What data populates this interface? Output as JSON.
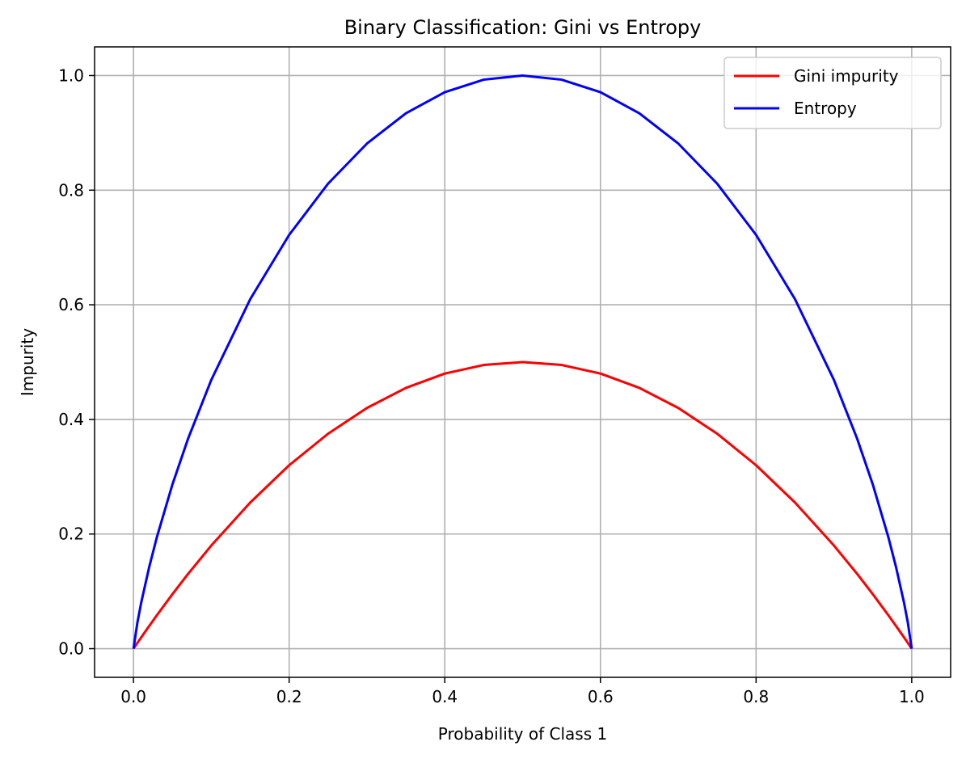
{
  "chart_data": {
    "type": "line",
    "title": "Binary Classification: Gini vs Entropy",
    "xlabel": "Probability of Class 1",
    "ylabel": "Impurity",
    "xlim": [
      -0.05,
      1.05
    ],
    "ylim": [
      -0.05,
      1.05
    ],
    "x_ticks": [
      0.0,
      0.2,
      0.4,
      0.6,
      0.8,
      1.0
    ],
    "x_tick_labels": [
      "0.0",
      "0.2",
      "0.4",
      "0.6",
      "0.8",
      "1.0"
    ],
    "y_ticks": [
      0.0,
      0.2,
      0.4,
      0.6,
      0.8,
      1.0
    ],
    "y_tick_labels": [
      "0.0",
      "0.2",
      "0.4",
      "0.6",
      "0.8",
      "1.0"
    ],
    "grid": true,
    "legend_position": "upper right",
    "x": [
      0.0,
      0.005,
      0.01,
      0.02,
      0.03,
      0.05,
      0.07,
      0.1,
      0.15,
      0.2,
      0.25,
      0.3,
      0.35,
      0.4,
      0.45,
      0.5,
      0.55,
      0.6,
      0.65,
      0.7,
      0.75,
      0.8,
      0.85,
      0.9,
      0.93,
      0.95,
      0.97,
      0.98,
      0.99,
      0.995,
      1.0
    ],
    "series": [
      {
        "name": "Gini impurity",
        "color": "#ff0000",
        "values": [
          0.0,
          0.01,
          0.0198,
          0.0392,
          0.0582,
          0.095,
          0.1302,
          0.18,
          0.255,
          0.32,
          0.375,
          0.42,
          0.455,
          0.48,
          0.495,
          0.5,
          0.495,
          0.48,
          0.455,
          0.42,
          0.375,
          0.32,
          0.255,
          0.18,
          0.1302,
          0.095,
          0.0582,
          0.0392,
          0.0198,
          0.01,
          0.0
        ]
      },
      {
        "name": "Entropy",
        "color": "#0000ff",
        "values": [
          0.0,
          0.0454,
          0.0808,
          0.1414,
          0.1944,
          0.2864,
          0.3659,
          0.469,
          0.6098,
          0.7219,
          0.8113,
          0.8813,
          0.9341,
          0.971,
          0.9928,
          1.0,
          0.9928,
          0.971,
          0.9341,
          0.8813,
          0.8113,
          0.7219,
          0.6098,
          0.469,
          0.3659,
          0.2864,
          0.1944,
          0.1414,
          0.0808,
          0.0454,
          0.0
        ]
      }
    ]
  }
}
